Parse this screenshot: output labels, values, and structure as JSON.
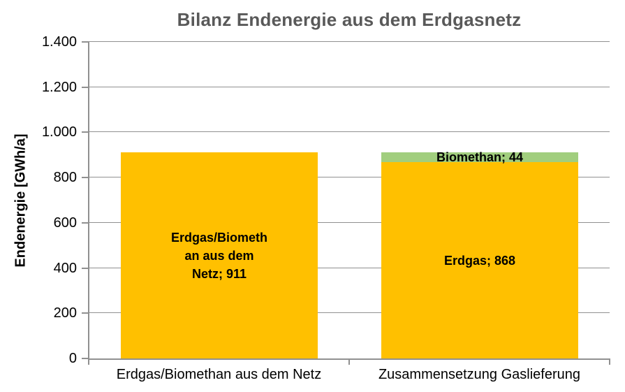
{
  "chart_data": {
    "type": "bar",
    "stacked": true,
    "title": "Bilanz Endenergie aus dem Erdgasnetz",
    "title_color": "#595959",
    "axis_color": "#909090",
    "xlabel": "",
    "ylabel": "Endenergie [GWh/a]",
    "ylim": [
      0,
      1400
    ],
    "ytick_step": 200,
    "ytick_labels": [
      "0",
      "200",
      "400",
      "600",
      "800",
      "1.000",
      "1.200",
      "1.400"
    ],
    "grid": "horizontal",
    "legend_position": "none",
    "categories": [
      "Erdgas/Biomethan aus dem Netz",
      "Zusammensetzung Gaslieferung"
    ],
    "series": [
      {
        "name": "Erdgas/Biomethan aus dem Netz",
        "values": [
          911,
          null
        ]
      },
      {
        "name": "Erdgas",
        "values": [
          null,
          868
        ]
      },
      {
        "name": "Biomethan",
        "values": [
          null,
          44
        ]
      }
    ],
    "bars": [
      {
        "category": "Erdgas/Biomethan aus dem Netz",
        "segments": [
          {
            "name": "Erdgas/Biomethan aus dem Netz",
            "value": 911,
            "color": "#FFC000",
            "label_lines": [
              "Erdgas/Biometh",
              "an aus dem",
              "Netz; 911"
            ]
          }
        ]
      },
      {
        "category": "Zusammensetzung Gaslieferung",
        "segments": [
          {
            "name": "Erdgas",
            "value": 868,
            "color": "#FFC000",
            "label_lines": [
              "Erdgas; 868"
            ]
          },
          {
            "name": "Biomethan",
            "value": 44,
            "color": "#A1CE7E",
            "label_lines": [
              "Biomethan; 44"
            ]
          }
        ]
      }
    ]
  }
}
